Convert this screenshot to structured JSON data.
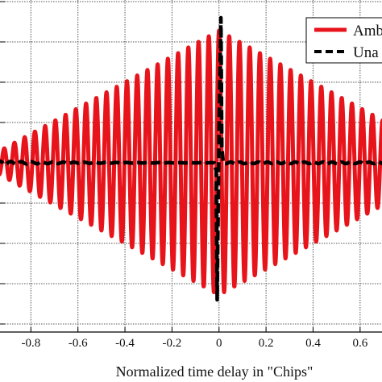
{
  "chart_data": {
    "type": "line",
    "title": "",
    "xlabel": "Normalized time delay in \"Chips\"",
    "ylabel": "",
    "xlim": [
      -1.0,
      0.7
    ],
    "ylim": [
      -1.05,
      1.05
    ],
    "x_ticks": [
      -0.8,
      -0.6,
      -0.4,
      -0.2,
      0,
      0.2,
      0.4,
      0.6
    ],
    "x_tick_labels": [
      "-0.8",
      "-0.6",
      "-0.4",
      "-0.2",
      "0",
      "0.2",
      "0.4",
      "0.6"
    ],
    "y_gridlines": [
      -1.0,
      -0.75,
      -0.5,
      -0.25,
      0,
      0.25,
      0.5,
      0.75,
      1.0
    ],
    "grid": true,
    "legend_position": "top-right",
    "series": [
      {
        "name": "Amb",
        "color": "#e8141b",
        "style": "solid",
        "envelope_peak": 0.8,
        "oscillation_period": 0.0435,
        "envelope_span": [
          -1.0,
          1.0
        ]
      },
      {
        "name": "Una",
        "color": "#000000",
        "style": "dashed",
        "peak_x": 0.008,
        "peak_y": 0.9,
        "trough_x": -0.008,
        "trough_y": -0.85,
        "baseline": 0.0
      }
    ]
  }
}
